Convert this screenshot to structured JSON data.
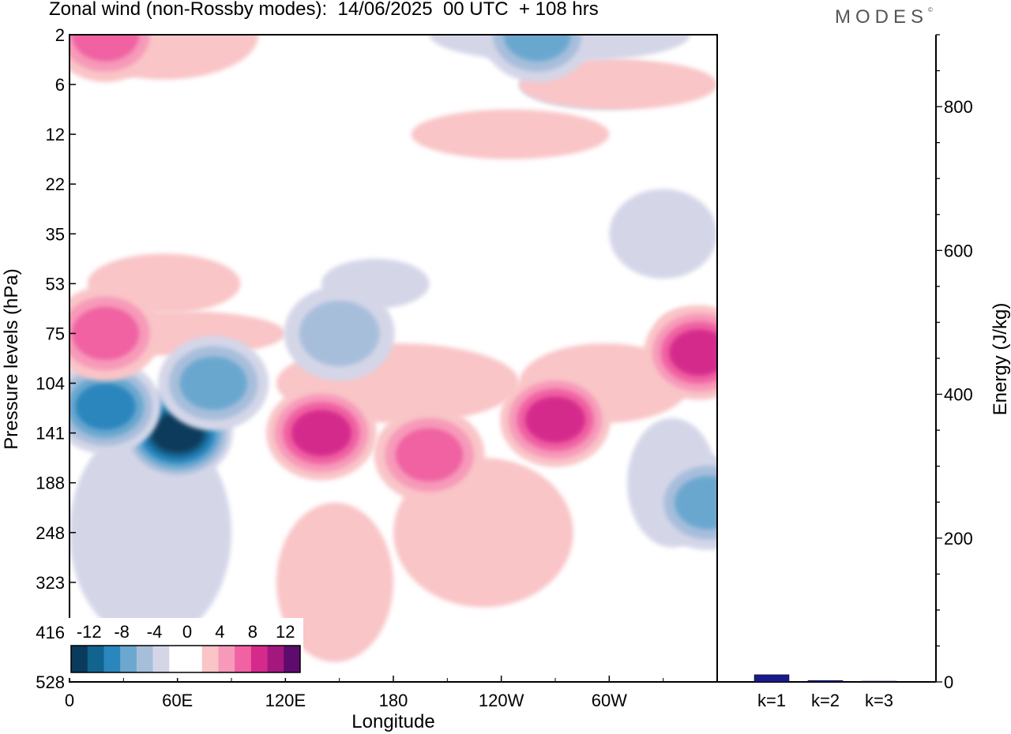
{
  "title": "Zonal wind (non-Rossby modes):  14/06/2025  00 UTC  + 108 hrs",
  "logo": "MODES",
  "logo_mark": "©",
  "colors": {
    "neg6": "#0a3a5c",
    "neg5": "#13638f",
    "neg4": "#2a86bd",
    "neg3": "#6ba7cf",
    "neg2": "#a7bedb",
    "neg1": "#d4d6e8",
    "zero": "#ffffff",
    "pos1": "#f9c5c7",
    "pos2": "#f79ab9",
    "pos3": "#f062a2",
    "pos4": "#d42a8c",
    "pos5": "#a4177f",
    "pos6": "#5d0c6d",
    "bar": "#1a1a8c"
  },
  "chart_data": [
    {
      "type": "heatmap",
      "title": "Zonal wind (non-Rossby modes):  14/06/2025  00 UTC  + 108 hrs",
      "xlabel": "Longitude",
      "ylabel": "Pressure levels (hPa)",
      "x_ticks": [
        "0",
        "60E",
        "120E",
        "180",
        "120W",
        "60W"
      ],
      "y_ticks": [
        "2",
        "6",
        "12",
        "22",
        "35",
        "53",
        "75",
        "104",
        "141",
        "188",
        "248",
        "323",
        "416",
        "528"
      ],
      "colorbar_labels": [
        "-12",
        "-8",
        "-4",
        "0",
        "4",
        "8",
        "12"
      ],
      "colorbar_levels": [
        -12,
        -10,
        -8,
        -6,
        -4,
        -2,
        0,
        2,
        4,
        6,
        8,
        10,
        12
      ],
      "features": [
        {
          "lon": 60,
          "level": 141,
          "value": -12
        },
        {
          "lon": 20,
          "level": 120,
          "value": -8
        },
        {
          "lon": 80,
          "level": 104,
          "value": -6
        },
        {
          "lon": 150,
          "level": 75,
          "value": -4
        },
        {
          "lon": 140,
          "level": 141,
          "value": 8
        },
        {
          "lon": 200,
          "level": 160,
          "value": 6
        },
        {
          "lon": 270,
          "level": 130,
          "value": 8
        },
        {
          "lon": 350,
          "level": 85,
          "value": 8
        },
        {
          "lon": 20,
          "level": 75,
          "value": 6
        },
        {
          "lon": 355,
          "level": 210,
          "value": -6
        },
        {
          "lon": 20,
          "level": 2,
          "value": 6
        },
        {
          "lon": 260,
          "level": 2,
          "value": -6
        }
      ]
    },
    {
      "type": "bar",
      "categories": [
        "k=1",
        "k=2",
        "k=3"
      ],
      "values": [
        10,
        2,
        1
      ],
      "ylabel": "Energy (J/kg)",
      "ylim": [
        0,
        900
      ],
      "y_ticks": [
        "0",
        "200",
        "400",
        "600",
        "800"
      ]
    }
  ]
}
